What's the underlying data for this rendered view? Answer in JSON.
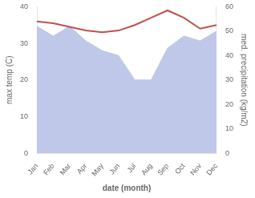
{
  "chart_data": {
    "type": "line",
    "xlabel": "date (month)",
    "ylabel": "max temp (C)",
    "y2label": "med. precipitation (kg/m2)",
    "categories": [
      "Jan",
      "Feb",
      "Mar",
      "Apr",
      "May",
      "Jun",
      "Jul",
      "Aug",
      "Sep",
      "Oct",
      "Nov",
      "Dec"
    ],
    "series": [
      {
        "type": "area",
        "axis": "y2",
        "color": "#bfc8e8",
        "values": [
          52,
          48,
          52,
          46,
          42,
          40,
          30,
          30,
          43,
          48,
          46,
          50
        ]
      },
      {
        "type": "line",
        "color": "#c0504d",
        "values": [
          36,
          35.5,
          34.5,
          33.5,
          33,
          33.5,
          35,
          37,
          39,
          37,
          34,
          35
        ]
      }
    ],
    "ylim": [
      0,
      40
    ],
    "yticks": [
      0,
      10,
      20,
      30,
      40
    ],
    "y2lim": [
      0,
      60
    ],
    "y2ticks": [
      0,
      10,
      20,
      30,
      40,
      50,
      60
    ],
    "grid": false
  }
}
